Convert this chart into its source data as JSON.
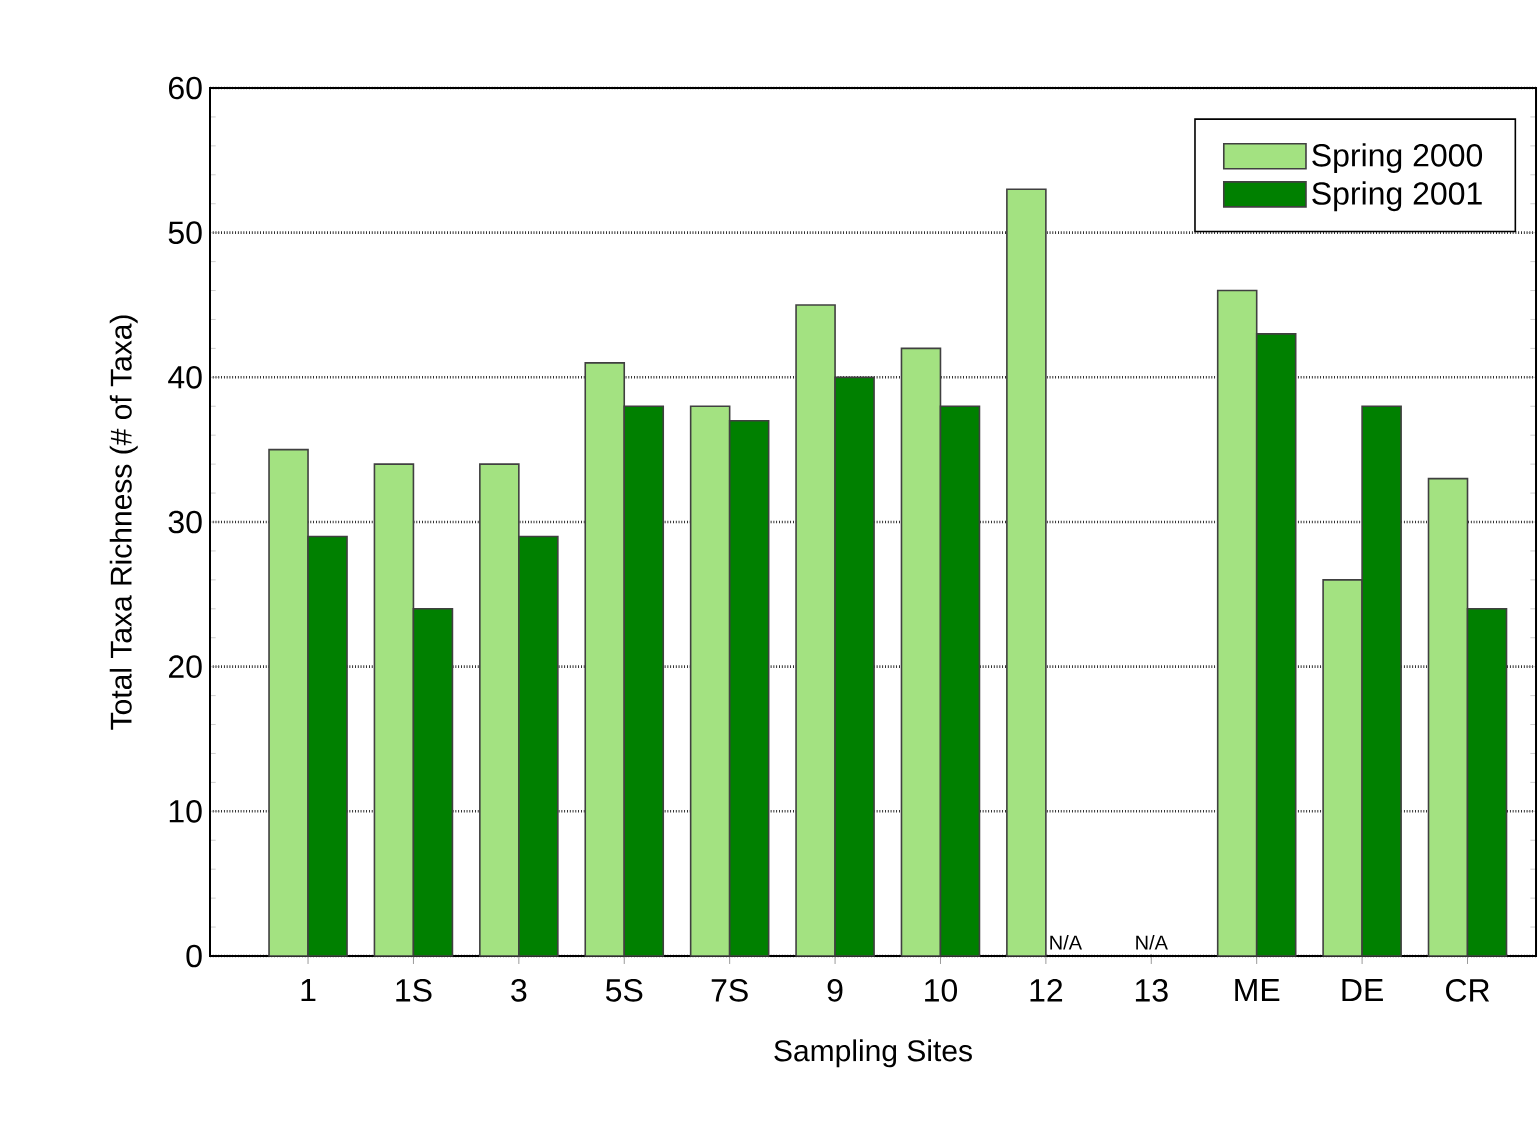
{
  "chart_data": {
    "type": "bar",
    "xlabel": "Sampling Sites",
    "ylabel": "Total Taxa Richness (# of Taxa)",
    "categories": [
      "1",
      "1S",
      "3",
      "5S",
      "7S",
      "9",
      "10",
      "12",
      "13",
      "ME",
      "DE",
      "CR"
    ],
    "series": [
      {
        "name": "Spring 2000",
        "color": "#a3e281",
        "values": [
          35,
          34,
          34,
          41,
          38,
          45,
          42,
          53,
          null,
          46,
          26,
          33
        ]
      },
      {
        "name": "Spring 2001",
        "color": "#008000",
        "values": [
          29,
          24,
          29,
          38,
          37,
          40,
          38,
          null,
          null,
          43,
          38,
          24
        ]
      }
    ],
    "ylim": [
      0,
      60
    ],
    "yticks": [
      0,
      10,
      20,
      30,
      40,
      50,
      60
    ],
    "grid": "y",
    "legend": "top right",
    "annotations": [
      "N/A",
      "N/A"
    ]
  }
}
